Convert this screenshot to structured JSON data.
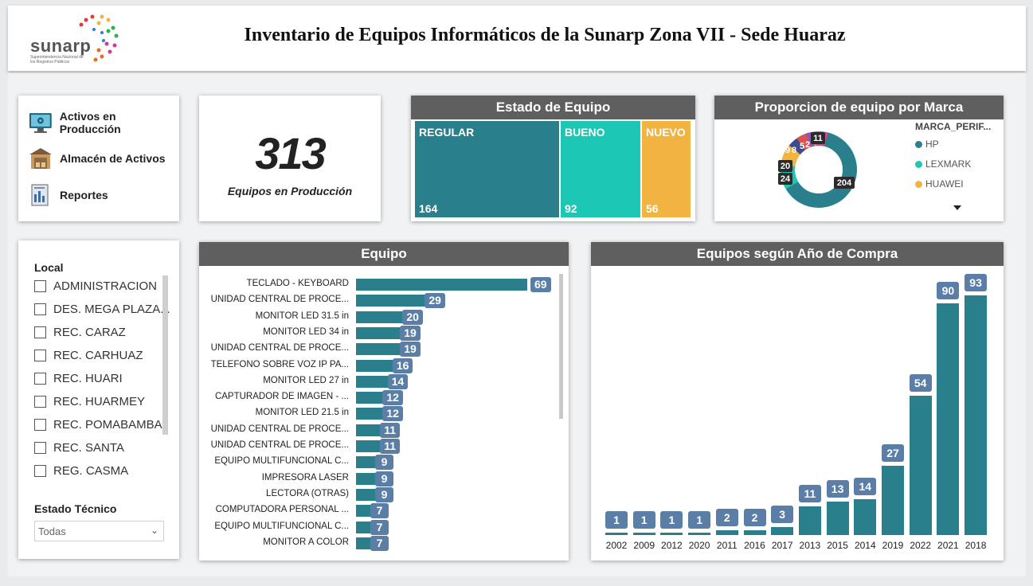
{
  "header": {
    "logo_text": "sunarp",
    "logo_sub": "Superintendencia Nacional de los Registros Públicos",
    "title": "Inventario de Equipos Informáticos de la Sunarp Zona VII - Sede Huaraz"
  },
  "nav": {
    "items": [
      {
        "label": "Activos en Producción",
        "icon": "monitor-gear-icon"
      },
      {
        "label": "Almacén de Activos",
        "icon": "warehouse-icon"
      },
      {
        "label": "Reportes",
        "icon": "report-icon"
      }
    ]
  },
  "kpi": {
    "value": "313",
    "label": "Equipos en Producción"
  },
  "estado": {
    "title": "Estado de Equipo",
    "cells": [
      {
        "name": "REGULAR",
        "value": "164",
        "color": "#2a7f8c"
      },
      {
        "name": "BUENO",
        "value": "92",
        "color": "#1cc7b5"
      },
      {
        "name": "NUEVO",
        "value": "56",
        "color": "#f2b440"
      }
    ]
  },
  "marca": {
    "title": "Proporcion de equipo por Marca",
    "legend_title": "MARCA_PERIF...",
    "legend": [
      {
        "name": "HP",
        "color": "#2a7f8c"
      },
      {
        "name": "LEXMARK",
        "color": "#1cc7b5"
      },
      {
        "name": "HUAWEI",
        "color": "#f2b440"
      }
    ],
    "donut_labels": [
      "204",
      "24",
      "20",
      "9",
      "8",
      "5",
      "2",
      "11"
    ],
    "more_icon": "caret-down-icon"
  },
  "filters": {
    "local_title": "Local",
    "local_options": [
      "ADMINISTRACION",
      "DES. MEGA PLAZA...",
      "REC. CARAZ",
      "REC. CARHUAZ",
      "REC. HUARI",
      "REC. HUARMEY",
      "REC. POMABAMBA",
      "REC. SANTA",
      "REG. CASMA"
    ],
    "estado_title": "Estado Técnico",
    "estado_value": "Todas"
  },
  "chart_data": [
    {
      "type": "bar",
      "title": "Equipo",
      "categories": [
        "TECLADO - KEYBOARD",
        "UNIDAD CENTRAL DE PROCE...",
        "MONITOR LED 31.5 in",
        "MONITOR LED 34 in",
        "UNIDAD CENTRAL DE PROCE...",
        "TELEFONO SOBRE VOZ IP PA...",
        "MONITOR LED 27 in",
        "CAPTURADOR DE IMAGEN - ...",
        "MONITOR LED 21.5 in",
        "UNIDAD CENTRAL DE PROCE...",
        "UNIDAD CENTRAL DE PROCE...",
        "EQUIPO MULTIFUNCIONAL C...",
        "IMPRESORA LASER",
        "LECTORA (OTRAS)",
        "COMPUTADORA PERSONAL ...",
        "EQUIPO MULTIFUNCIONAL C...",
        "MONITOR A COLOR"
      ],
      "values": [
        69,
        29,
        20,
        19,
        19,
        16,
        14,
        12,
        12,
        11,
        11,
        9,
        9,
        9,
        7,
        7,
        7
      ],
      "orientation": "horizontal"
    },
    {
      "type": "bar",
      "title": "Equipos según Año de Compra",
      "categories": [
        "2002",
        "2009",
        "2012",
        "2020",
        "2011",
        "2016",
        "2017",
        "2013",
        "2015",
        "2014",
        "2019",
        "2022",
        "2021",
        "2018"
      ],
      "values": [
        1,
        1,
        1,
        1,
        2,
        2,
        3,
        11,
        13,
        14,
        27,
        54,
        90,
        93
      ],
      "ylim": [
        0,
        93
      ]
    },
    {
      "type": "pie",
      "title": "Estado de Equipo",
      "categories": [
        "REGULAR",
        "BUENO",
        "NUEVO"
      ],
      "values": [
        164,
        92,
        56
      ]
    }
  ]
}
